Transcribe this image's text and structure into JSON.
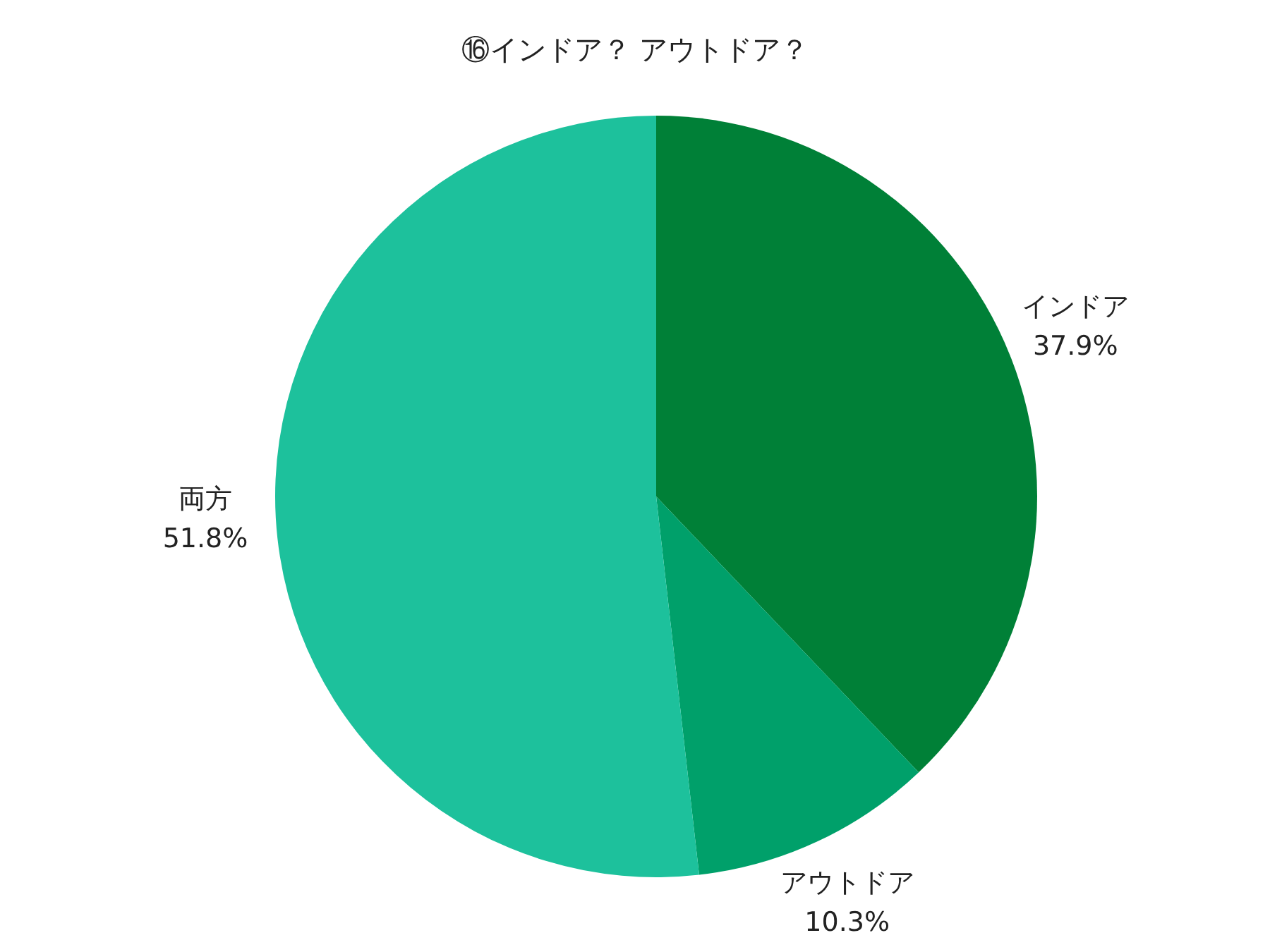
{
  "chart_data": {
    "type": "pie",
    "title": "⑯インドア？ アウトドア？",
    "categories": [
      "インドア",
      "アウトドア",
      "両方"
    ],
    "values": [
      37.9,
      10.3,
      51.8
    ],
    "value_labels": [
      "37.9%",
      "10.3%",
      "51.8%"
    ],
    "colors": [
      "#008037",
      "#00a06a",
      "#1dc19c"
    ],
    "legend": false
  }
}
